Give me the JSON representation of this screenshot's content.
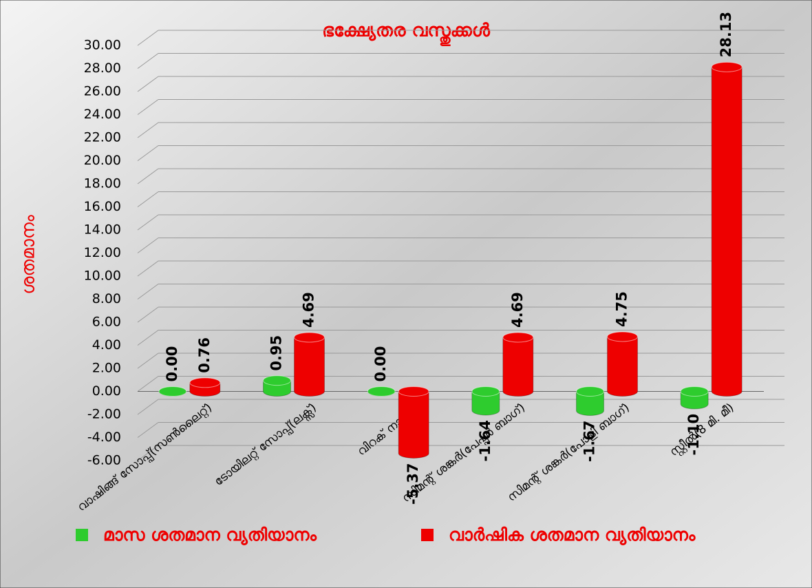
{
  "chart_data": {
    "type": "bar",
    "title": "ഭക്ഷ്യേതര വസ്തുക്കൾ",
    "y_label": "ശതമാനം",
    "categories": [
      "വാഷിങ്ങ് സോപ്പ്(സൺലൈറ്റ്)",
      "ടോയിലറ്റ് സോപ്പ്(ലക്സ്)",
      "വിറക് നാടൻ)",
      "സിമന്റ് ശങ്കർ(പേപ്പർ ബാഗ്)",
      "സിമന്റ് ശങ്കർ(പോളി ബാഗ്)",
      "സ്റ്റീൽ(8 മി. മീ)"
    ],
    "series": [
      {
        "name": "മാസ ശതമാന വ്യതിയാനം",
        "color": "#2ecc2e",
        "values": [
          0,
          0.95,
          0,
          -1.64,
          -1.67,
          -1.1
        ],
        "value_labels": [
          "0.00",
          "0.95",
          "0.00",
          "-1.64",
          "-1.67",
          "-1.10"
        ]
      },
      {
        "name": "വാർഷിക ശതമാന വ്യതിയാനം",
        "color": "#ee0000",
        "values": [
          0.76,
          4.69,
          -5.37,
          4.69,
          4.75,
          28.13
        ],
        "value_labels": [
          "0.76",
          "4.69",
          "-5.37",
          "4.69",
          "4.75",
          "28.13"
        ]
      }
    ],
    "ylim": [
      -6,
      30
    ],
    "yticks": [
      {
        "value": -6,
        "label": "-6.00"
      },
      {
        "value": -4,
        "label": "-4.00"
      },
      {
        "value": -2,
        "label": "-2.00"
      },
      {
        "value": 0,
        "label": "0.00"
      },
      {
        "value": 2,
        "label": "2.00"
      },
      {
        "value": 4,
        "label": "4.00"
      },
      {
        "value": 6,
        "label": "6.00"
      },
      {
        "value": 8,
        "label": "8.00"
      },
      {
        "value": 10,
        "label": "10.00"
      },
      {
        "value": 12,
        "label": "12.00"
      },
      {
        "value": 14,
        "label": "14.00"
      },
      {
        "value": 16,
        "label": "16.00"
      },
      {
        "value": 18,
        "label": "18.00"
      },
      {
        "value": 20,
        "label": "20.00"
      },
      {
        "value": 22,
        "label": "22.00"
      },
      {
        "value": 24,
        "label": "24.00"
      },
      {
        "value": 26,
        "label": "26.00"
      },
      {
        "value": 28,
        "label": "28.00"
      },
      {
        "value": 30,
        "label": "30.00"
      }
    ],
    "grid": true
  }
}
